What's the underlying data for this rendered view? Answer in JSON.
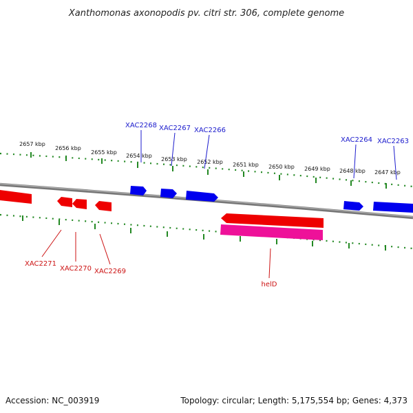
{
  "title": "Xanthomonas axonopodis pv. citri str. 306, complete genome",
  "footer": {
    "accession": "Accession: NC_003919",
    "summary": "Topology: circular; Length: 5,175,554 bp; Genes: 4,373"
  },
  "colors": {
    "forward_gene": "#0000ee",
    "reverse_gene": "#ee0000",
    "rrna_feature": "#ee1199",
    "backbone": "#888888",
    "ticks": "#228822",
    "forward_label": "#1a1acc",
    "reverse_label": "#cc1111"
  },
  "ticks": [
    {
      "label": "2657 kbp"
    },
    {
      "label": "2656 kbp"
    },
    {
      "label": "2655 kbp"
    },
    {
      "label": "2654 kbp"
    },
    {
      "label": "2653 kbp"
    },
    {
      "label": "2652 kbp"
    },
    {
      "label": "2651 kbp"
    },
    {
      "label": "2650 kbp"
    },
    {
      "label": "2649 kbp"
    },
    {
      "label": "2648 kbp"
    },
    {
      "label": "2647 kbp"
    }
  ],
  "forward_genes": [
    {
      "label": "XAC2268"
    },
    {
      "label": "XAC2267"
    },
    {
      "label": "XAC2266"
    },
    {
      "label": "XAC2264"
    },
    {
      "label": "XAC2263"
    }
  ],
  "reverse_genes": [
    {
      "label": "XAC2271"
    },
    {
      "label": "XAC2270"
    },
    {
      "label": "XAC2269"
    },
    {
      "label": "helD"
    }
  ]
}
